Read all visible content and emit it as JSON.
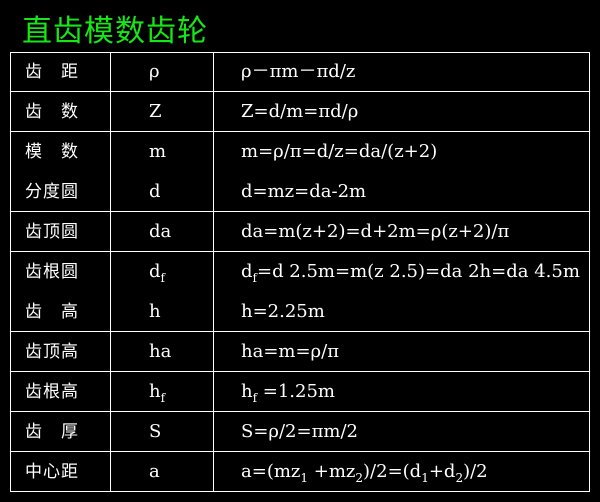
{
  "title": "直齿模数齿轮",
  "rows": [
    {
      "name": "齿　距",
      "symbol": [
        "ρ"
      ],
      "formula": [
        "ρ－πm－πd/z"
      ],
      "sep": true
    },
    {
      "name": "齿　数",
      "symbol": [
        "Z"
      ],
      "formula": [
        "Z=d/m=πd/ρ"
      ],
      "sep": true
    },
    {
      "name": "模　数",
      "symbol": [
        "m"
      ],
      "formula": [
        "m=ρ/π=d/z=da/(z+2)"
      ],
      "sep": false
    },
    {
      "name": "分度圆",
      "symbol": [
        "d"
      ],
      "formula": [
        "d=mz=da-2m"
      ],
      "sep": true
    },
    {
      "name": "齿顶圆",
      "symbol": [
        "da"
      ],
      "formula": [
        "da=m(z+2)=d+2m=ρ(z+2)/π"
      ],
      "sep": true
    },
    {
      "name": "齿根圆",
      "symbol": [
        "d",
        "f"
      ],
      "formula": [
        "d",
        "f",
        "=d 2.5m=m(z 2.5)=da 2h=da 4.5m"
      ],
      "sep": false
    },
    {
      "name": "齿　高",
      "symbol": [
        "h"
      ],
      "formula": [
        "h=2.25m"
      ],
      "sep": true
    },
    {
      "name": "齿顶高",
      "symbol": [
        "ha"
      ],
      "formula": [
        "ha=m=ρ/π"
      ],
      "sep": true
    },
    {
      "name": "齿根高",
      "symbol": [
        "h",
        "f"
      ],
      "formula": [
        "h",
        "f",
        " =1.25m"
      ],
      "sep": true
    },
    {
      "name": "齿　厚",
      "symbol": [
        "S"
      ],
      "formula": [
        "S=ρ/2=πm/2"
      ],
      "sep": true
    },
    {
      "name": "中心距",
      "symbol": [
        "a"
      ],
      "formula": [
        "a=(mz",
        "1",
        " +mz",
        "2",
        ")/2=(d",
        "1",
        "+d",
        "2",
        ")/2"
      ],
      "sep": false
    }
  ],
  "colors": {
    "title": "#17e617",
    "background": "#000000",
    "text": "#ffffff"
  }
}
